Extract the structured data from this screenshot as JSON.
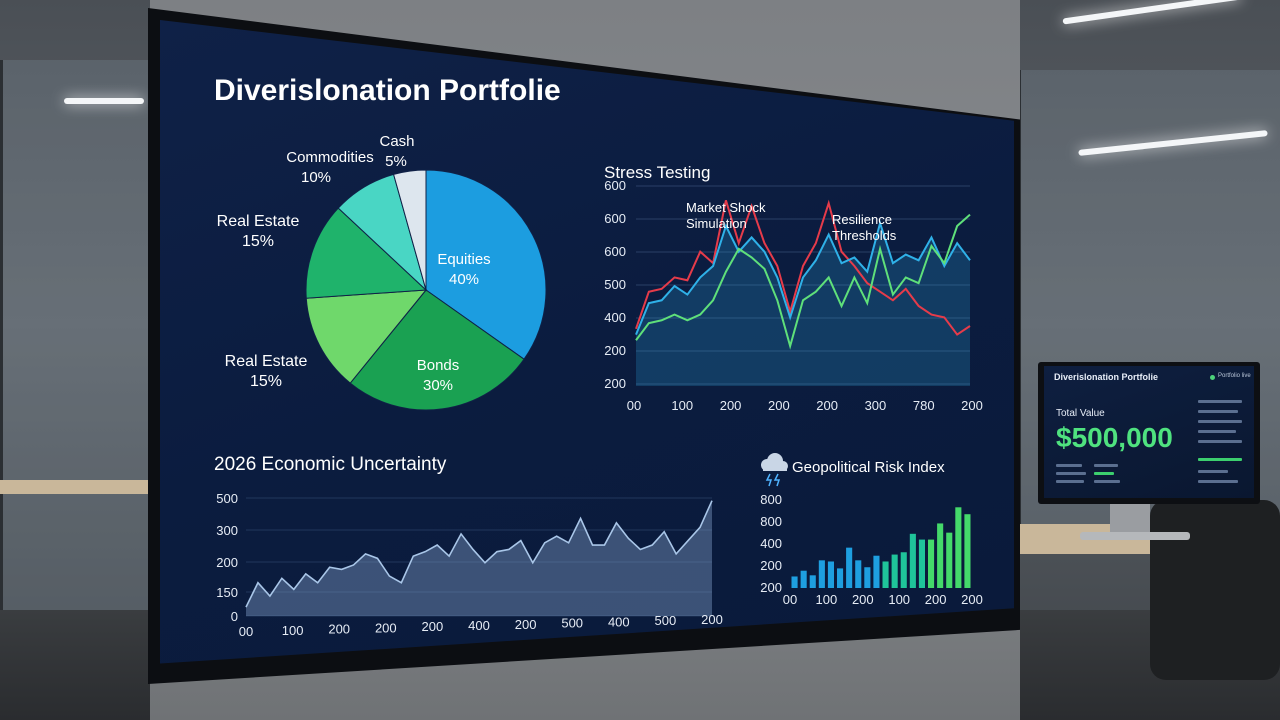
{
  "dashboard": {
    "title": "Diverislonation Portfolie",
    "pie": {
      "slices": [
        {
          "label": "Equities",
          "pct": "40%",
          "value": 40,
          "color": "#1c9de0"
        },
        {
          "label": "Bonds",
          "pct": "30%",
          "value": 30,
          "color": "#1aa152"
        },
        {
          "label": "Real Estate",
          "pct": "15%",
          "value": 15,
          "color": "#6fd86b"
        },
        {
          "label": "Real Estate",
          "pct": "15%",
          "value": 15,
          "color": "#1fb36b"
        },
        {
          "label": "Commodities",
          "pct": "10%",
          "value": 10,
          "color": "#49d6c4"
        },
        {
          "label": "Cash",
          "pct": "5%",
          "value": 5,
          "color": "#dde6ee"
        }
      ]
    },
    "stress": {
      "title": "Stress Testing",
      "annotation1_line1": "Market Shock",
      "annotation1_line2": "Simulation",
      "annotation2_line1": "Resilience",
      "annotation2_line2": "Thresholds",
      "y_ticks": [
        "600",
        "600",
        "600",
        "500",
        "400",
        "200",
        "200"
      ],
      "x_ticks": [
        "00",
        "100",
        "200",
        "200",
        "200",
        "300",
        "780",
        "200"
      ]
    },
    "economic": {
      "title": "2026 Economic Uncertainty",
      "y_ticks": [
        "500",
        "300",
        "200",
        "150",
        "0"
      ],
      "x_ticks": [
        "00",
        "100",
        "200",
        "200",
        "200",
        "400",
        "200",
        "500",
        "400",
        "500",
        "200"
      ]
    },
    "geo": {
      "title": "Geopolitical Risk Index",
      "icon": "storm-cloud-icon",
      "y_ticks": [
        "800",
        "800",
        "400",
        "200",
        "200"
      ],
      "x_ticks": [
        "00",
        "100",
        "200",
        "100",
        "200",
        "200"
      ]
    }
  },
  "monitor2": {
    "title": "Diverislonation Portfolie",
    "tag": "Portfolio live",
    "total_label": "Total Value",
    "total_value": "$500,000"
  },
  "chart_data": [
    {
      "type": "pie",
      "title": "Diverislonation Portfolie",
      "categories": [
        "Equities",
        "Bonds",
        "Real Estate",
        "Real Estate",
        "Commodities",
        "Cash"
      ],
      "values": [
        40,
        30,
        15,
        15,
        10,
        5
      ]
    },
    {
      "type": "line",
      "title": "Stress Testing",
      "x": [
        0,
        1,
        2,
        3,
        4,
        5,
        6,
        7,
        8,
        9,
        10,
        11,
        12,
        13,
        14,
        15,
        16,
        17,
        18,
        19,
        20,
        21,
        22,
        23,
        24,
        25,
        26
      ],
      "series": [
        {
          "name": "",
          "color": "#e63b4a",
          "values": [
            200,
            330,
            340,
            380,
            370,
            470,
            430,
            650,
            500,
            630,
            500,
            420,
            260,
            420,
            500,
            640,
            470,
            420,
            360,
            330,
            300,
            340,
            280,
            250,
            240,
            180,
            210
          ]
        },
        {
          "name": "",
          "color": "#2fb1e8",
          "values": [
            180,
            290,
            300,
            350,
            320,
            380,
            420,
            560,
            470,
            520,
            470,
            380,
            240,
            380,
            440,
            530,
            430,
            450,
            400,
            570,
            430,
            460,
            440,
            520,
            420,
            500,
            440
          ]
        },
        {
          "name": "",
          "color": "#5fe07a",
          "values": [
            160,
            220,
            230,
            250,
            230,
            250,
            300,
            400,
            480,
            450,
            410,
            300,
            140,
            300,
            330,
            380,
            280,
            380,
            290,
            480,
            320,
            380,
            360,
            490,
            430,
            560,
            600
          ]
        }
      ]
    },
    {
      "type": "area",
      "title": "2026 Economic Uncertainty",
      "x": [
        0,
        1,
        2,
        3,
        4,
        5,
        6,
        7,
        8,
        9,
        10,
        11,
        12,
        13,
        14,
        15,
        16,
        17,
        18,
        19,
        20,
        21,
        22,
        23,
        24,
        25,
        26,
        27,
        28,
        29,
        30,
        31,
        32,
        33,
        34,
        35,
        36,
        37,
        38,
        39
      ],
      "values": [
        40,
        150,
        90,
        170,
        120,
        190,
        150,
        220,
        210,
        230,
        280,
        260,
        180,
        150,
        270,
        290,
        320,
        270,
        370,
        300,
        240,
        290,
        300,
        340,
        240,
        330,
        360,
        330,
        440,
        320,
        320,
        420,
        350,
        300,
        320,
        380,
        280,
        340,
        400,
        520
      ],
      "ylim": [
        0,
        550
      ]
    },
    {
      "type": "bar",
      "title": "Geopolitical Risk Index",
      "values": [
        100,
        150,
        110,
        240,
        230,
        170,
        350,
        240,
        180,
        280,
        230,
        290,
        310,
        470,
        420,
        420,
        560,
        480,
        700,
        640
      ],
      "ylim": [
        0,
        850
      ]
    }
  ]
}
